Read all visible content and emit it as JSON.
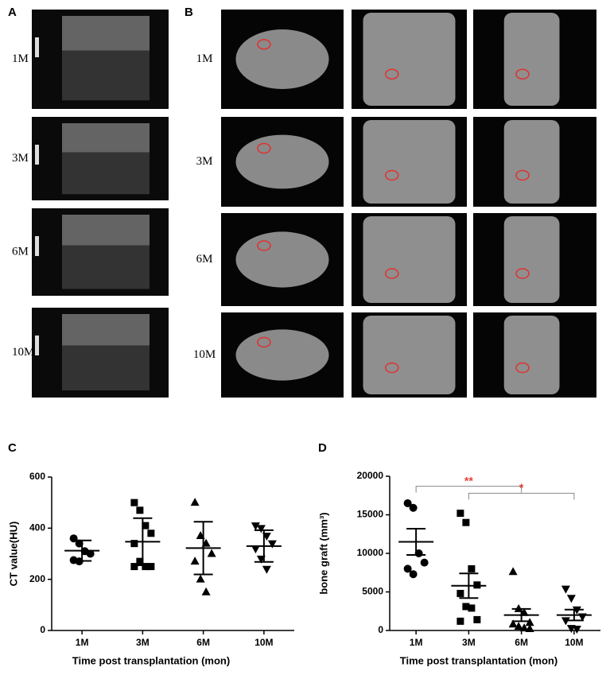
{
  "panel_labels": [
    "A",
    "B",
    "C",
    "D"
  ],
  "rows_A": [
    "1M",
    "3M",
    "6M",
    "10M"
  ],
  "rows_B": [
    "1M",
    "3M",
    "6M",
    "10M"
  ],
  "chart_data": [
    {
      "type": "dotplot",
      "ylabel": "CT value(HU)",
      "xlabel": "Time post transplantation (mon)",
      "categories": [
        "1M",
        "3M",
        "6M",
        "10M"
      ],
      "markers": [
        "circle",
        "square",
        "triangle",
        "triangle-down"
      ],
      "color": "#000000",
      "points": [
        [
          360,
          340,
          310,
          300,
          275,
          270
        ],
        [
          500,
          470,
          410,
          380,
          340,
          270,
          250,
          250,
          250
        ],
        [
          500,
          370,
          340,
          300,
          270,
          200,
          150
        ],
        [
          410,
          400,
          370,
          340,
          320,
          280,
          240
        ]
      ],
      "mean": [
        312,
        347,
        322,
        330
      ],
      "error": [
        40,
        92,
        103,
        62
      ],
      "ylim": [
        0,
        600
      ],
      "yticks": [
        0,
        200,
        400,
        600
      ]
    },
    {
      "type": "dotplot",
      "ylabel": "bone graft (mm³)",
      "xlabel": "Time post transplantation (mon)",
      "categories": [
        "1M",
        "3M",
        "6M",
        "10M"
      ],
      "markers": [
        "circle",
        "square",
        "triangle",
        "triangle-down"
      ],
      "color": "#000000",
      "points": [
        [
          16500,
          15900,
          10000,
          8800,
          8000,
          7300
        ],
        [
          15200,
          14000,
          8000,
          5900,
          4800,
          3100,
          2900,
          1400,
          1200
        ],
        [
          7600,
          2800,
          2300,
          1000,
          800,
          500,
          300,
          200
        ],
        [
          5400,
          4200,
          2700,
          1800,
          1300,
          300,
          200
        ]
      ],
      "mean": [
        11500,
        5800,
        2000,
        2000
      ],
      "error": [
        1700,
        1600,
        800,
        700
      ],
      "ylim": [
        0,
        20000
      ],
      "yticks": [
        0,
        5000,
        10000,
        15000,
        20000
      ],
      "brackets": [
        {
          "label": "**",
          "from": "1M",
          "to": "6M",
          "y": 18700
        },
        {
          "label": "*",
          "from": "3M",
          "to": "10M",
          "y": 17800
        }
      ],
      "bracket_label_color": "#e8413c"
    }
  ]
}
